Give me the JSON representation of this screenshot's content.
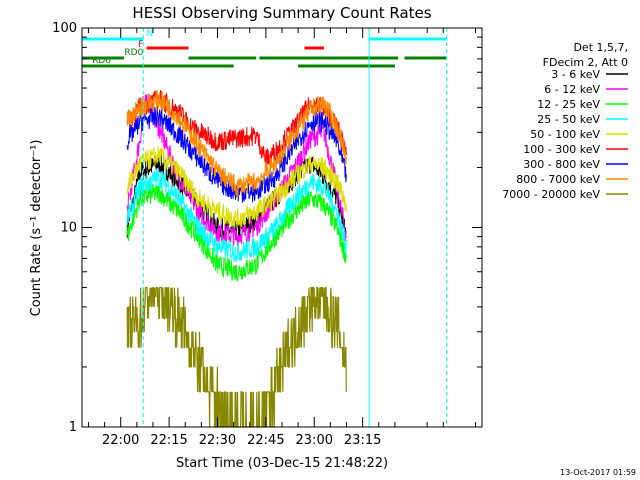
{
  "chart_data": {
    "type": "line",
    "title": "HESSI Observing Summary Count Rates",
    "xlabel": "Start Time (03-Dec-15 21:48:22)",
    "ylabel": "Count Rate (s⁻¹ detector⁻¹)",
    "footer": "13-Oct-2017 01:59",
    "y_scale": "log",
    "ylim": [
      1,
      100
    ],
    "xlim_minutes": [
      0,
      124
    ],
    "y_ticks": [
      {
        "value": 1,
        "label": "1"
      },
      {
        "value": 10,
        "label": "10"
      },
      {
        "value": 100,
        "label": "100"
      }
    ],
    "x_ticks": [
      {
        "minutes": 12,
        "label": "22:00"
      },
      {
        "minutes": 27,
        "label": "22:15"
      },
      {
        "minutes": 42,
        "label": "22:30"
      },
      {
        "minutes": 57,
        "label": "22:45"
      },
      {
        "minutes": 72,
        "label": "23:00"
      },
      {
        "minutes": 87,
        "label": "23:15"
      }
    ],
    "legend": {
      "placement": "right",
      "header": [
        "Det 1,5,7,",
        "FDecim 2, Att 0"
      ],
      "entries": [
        {
          "name": "3 - 6 keV",
          "color": "#000000"
        },
        {
          "name": "6 - 12 keV",
          "color": "#ff00ff"
        },
        {
          "name": "12 - 25 keV",
          "color": "#00ff00"
        },
        {
          "name": "25 - 50 keV",
          "color": "#00ffff"
        },
        {
          "name": "50 - 100 keV",
          "color": "#dddd00"
        },
        {
          "name": "100 - 300 keV",
          "color": "#ff0000"
        },
        {
          "name": "300 - 800 keV",
          "color": "#0000ff"
        },
        {
          "name": "800 - 7000 keV",
          "color": "#ff8800"
        },
        {
          "name": "7000 - 20000 keV",
          "color": "#888800"
        }
      ]
    },
    "series": [
      {
        "name": "3 - 6 keV",
        "color": "#000000",
        "x": [
          14,
          18,
          24,
          30,
          36,
          42,
          48,
          54,
          60,
          66,
          71,
          75,
          79,
          82
        ],
        "y": [
          10,
          19,
          21,
          17,
          13,
          10,
          9.5,
          11,
          14,
          18,
          21,
          18,
          14,
          9
        ]
      },
      {
        "name": "6 - 12 keV",
        "color": "#ff00ff",
        "x": [
          14,
          18,
          20,
          24,
          30,
          36,
          42,
          48,
          54,
          60,
          66,
          71,
          75,
          79,
          82
        ],
        "y": [
          12,
          28,
          45,
          31,
          18,
          12,
          9.5,
          9,
          10,
          14,
          20,
          28,
          30,
          16,
          9
        ]
      },
      {
        "name": "12 - 25 keV",
        "color": "#00ff00",
        "x": [
          14,
          18,
          24,
          30,
          36,
          42,
          48,
          54,
          60,
          66,
          71,
          75,
          79,
          82
        ],
        "y": [
          9,
          14,
          15,
          12,
          9,
          6.5,
          6,
          6.5,
          9,
          12,
          14,
          13,
          10,
          7
        ]
      },
      {
        "name": "25 - 50 keV",
        "color": "#00ffff",
        "x": [
          14,
          18,
          24,
          30,
          36,
          42,
          48,
          54,
          60,
          66,
          71,
          75,
          79,
          82
        ],
        "y": [
          11,
          16,
          18,
          14,
          10,
          8,
          7.5,
          8,
          10,
          14,
          17,
          16,
          12,
          8
        ]
      },
      {
        "name": "50 - 100 keV",
        "color": "#dddd00",
        "x": [
          14,
          18,
          24,
          30,
          36,
          42,
          48,
          54,
          60,
          66,
          71,
          75,
          79,
          82
        ],
        "y": [
          16,
          21,
          23,
          19,
          14,
          12,
          11,
          12,
          14,
          18,
          21,
          20,
          17,
          13
        ]
      },
      {
        "name": "100 - 300 keV",
        "color": "#ff0000",
        "x": [
          14,
          18,
          24,
          30,
          34,
          38,
          42,
          48,
          54,
          57,
          60,
          66,
          71,
          75,
          79,
          82
        ],
        "y": [
          34,
          40,
          44,
          38,
          32,
          29,
          27,
          28,
          29,
          22,
          24,
          32,
          42,
          40,
          32,
          24
        ]
      },
      {
        "name": "300 - 800 keV",
        "color": "#0000ff",
        "x": [
          14,
          18,
          24,
          30,
          36,
          42,
          48,
          54,
          60,
          66,
          71,
          75,
          79,
          82
        ],
        "y": [
          27,
          34,
          36,
          29,
          22,
          17,
          15,
          15,
          18,
          26,
          34,
          34,
          27,
          18
        ]
      },
      {
        "name": "800 - 7000 keV",
        "color": "#ff8800",
        "x": [
          14,
          18,
          24,
          30,
          36,
          42,
          48,
          54,
          60,
          66,
          71,
          75,
          79,
          82
        ],
        "y": [
          34,
          40,
          44,
          36,
          26,
          19,
          16,
          17,
          21,
          30,
          39,
          42,
          32,
          23
        ]
      },
      {
        "name": "7000 - 20000 keV",
        "color": "#888800",
        "x": [
          14,
          18,
          20,
          23,
          26,
          30,
          34,
          38,
          42,
          48,
          54,
          57,
          60,
          64,
          68,
          72,
          76,
          80,
          82
        ],
        "y": [
          3,
          3.5,
          4.5,
          5,
          4.5,
          3.5,
          2.5,
          1.8,
          1.3,
          1.1,
          1.1,
          1.2,
          1.6,
          2.5,
          3.5,
          4.5,
          4,
          3,
          2
        ]
      }
    ],
    "status_bars": [
      {
        "label": "N",
        "color": "#00ffff",
        "segments": [
          [
            0,
            19
          ],
          [
            89,
            113
          ]
        ]
      },
      {
        "label": "F",
        "color": "#ff0000",
        "segments": [
          [
            20,
            33
          ],
          [
            69,
            75
          ]
        ]
      },
      {
        "label": "RD0",
        "color": "#008000",
        "segments": [
          [
            0,
            13
          ],
          [
            33,
            54
          ],
          [
            55,
            98
          ],
          [
            100,
            113
          ]
        ]
      },
      {
        "label": "RD6",
        "color": "#008000",
        "segments": [
          [
            0,
            47
          ],
          [
            67,
            97
          ]
        ]
      }
    ],
    "vertical_lines": [
      {
        "minutes": 19,
        "style": "dashed",
        "color": "#00ffff"
      },
      {
        "minutes": 89,
        "style": "solid",
        "color": "#00ffff"
      },
      {
        "minutes": 113,
        "style": "dashed",
        "color": "#00ffff"
      }
    ]
  }
}
